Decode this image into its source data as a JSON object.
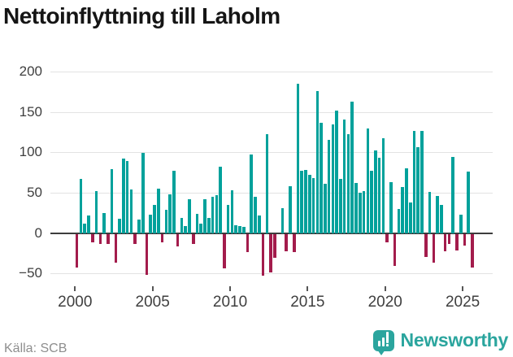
{
  "title": "Nettoinflyttning till Laholm",
  "source": "Källa: SCB",
  "logo": {
    "name": "Newsworthy"
  },
  "colors": {
    "positive_bar": "#00a19b",
    "negative_bar": "#a31c4c",
    "gridline": "#e3e3e3",
    "zero_line": "#3d3d3d",
    "axis_text": "#3f3f3f",
    "title_text": "#151515",
    "source_text": "#8e8e8e",
    "logo_teal": "#2ba59e"
  },
  "chart_data": {
    "type": "bar",
    "title": "Nettoinflyttning till Laholm",
    "frequency": "quarterly",
    "start_year": 2000,
    "start_quarter": 1,
    "y_axis_ticks": [
      200,
      150,
      100,
      50,
      0,
      -50
    ],
    "y_axis_tick_labels": [
      "200",
      "150",
      "100",
      "50",
      "0",
      "−50"
    ],
    "x_axis_ticks": [
      2000,
      2005,
      2010,
      2015,
      2020,
      2025
    ],
    "x_axis_tick_labels": [
      "2000",
      "2005",
      "2010",
      "2015",
      "2020",
      "2025"
    ],
    "ylim": [
      -75,
      210
    ],
    "grid": true,
    "legend": false,
    "values": [
      -42,
      67,
      12,
      22,
      -10,
      52,
      -12,
      25,
      -12,
      79,
      -36,
      18,
      92,
      89,
      54,
      -12,
      17,
      99,
      -51,
      23,
      35,
      55,
      -10,
      29,
      48,
      77,
      -15,
      19,
      9,
      42,
      -12,
      24,
      12,
      42,
      19,
      45,
      47,
      82,
      -43,
      35,
      53,
      10,
      9,
      8,
      -22,
      97,
      45,
      22,
      -52,
      122,
      -48,
      -29,
      0,
      31,
      -21,
      58,
      -22,
      185,
      77,
      78,
      72,
      68,
      176,
      137,
      61,
      115,
      135,
      152,
      67,
      141,
      122,
      163,
      62,
      50,
      52,
      129,
      77,
      102,
      93,
      117,
      -10,
      63,
      -40,
      30,
      57,
      80,
      38,
      126,
      106,
      126,
      -28,
      51,
      -36,
      46,
      35,
      -21,
      -12,
      94,
      -20,
      23,
      -14,
      76,
      -42
    ]
  }
}
